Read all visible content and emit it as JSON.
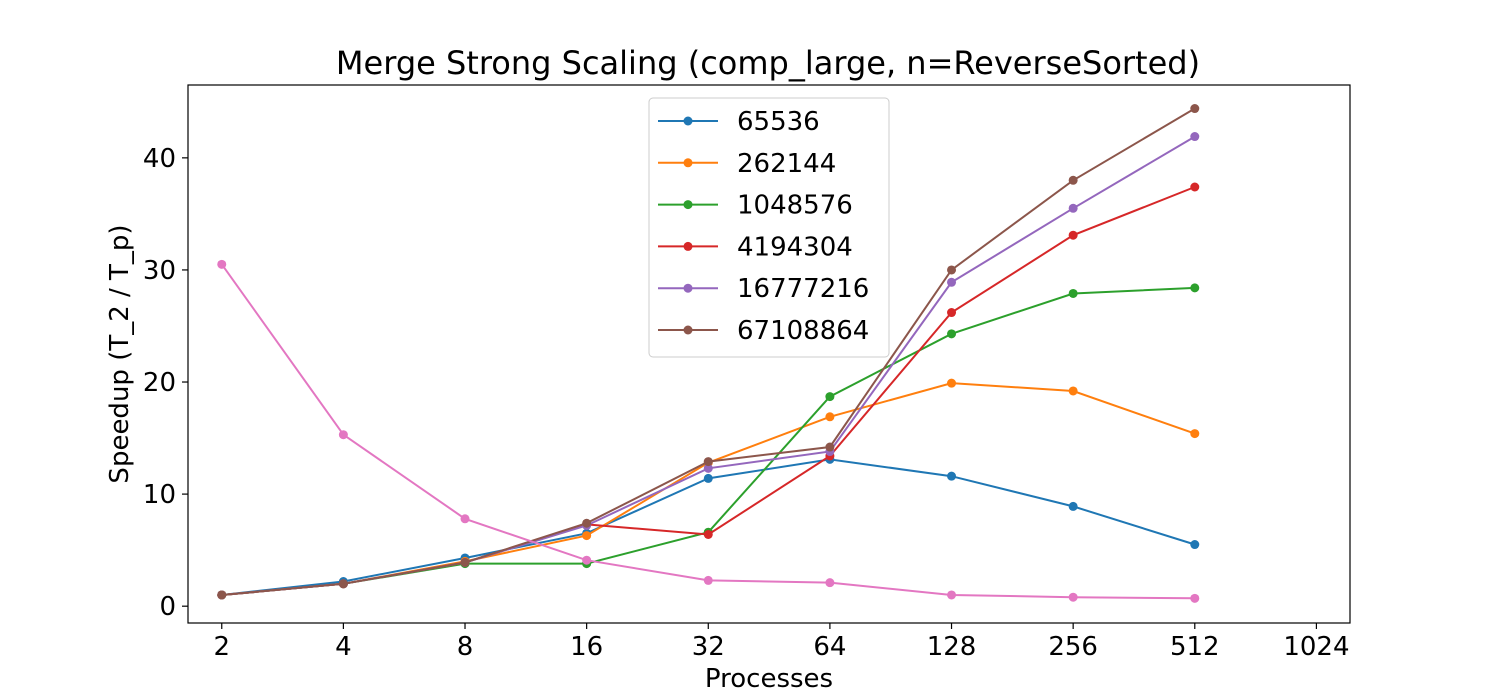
{
  "chart_data": {
    "type": "line",
    "title": "Merge Strong Scaling (comp_large, n=ReverseSorted)",
    "xlabel": "Processes",
    "ylabel": "Speedup (T_2 / T_p)",
    "x_scale": "log2",
    "x_ticks": [
      2,
      4,
      8,
      16,
      32,
      64,
      128,
      256,
      512,
      1024
    ],
    "y_ticks": [
      0,
      10,
      20,
      30,
      40
    ],
    "xlim": [
      1.65,
      1240
    ],
    "ylim": [
      -1.5,
      46.5
    ],
    "grid": false,
    "legend_position": "upper-center",
    "series": [
      {
        "name": "65536",
        "color": "#1f77b4",
        "x": [
          2,
          4,
          8,
          16,
          32,
          64,
          128,
          256,
          512
        ],
        "y": [
          1.0,
          2.2,
          4.3,
          6.5,
          11.4,
          13.1,
          11.6,
          8.9,
          5.5
        ]
      },
      {
        "name": "262144",
        "color": "#ff7f0e",
        "x": [
          2,
          4,
          8,
          16,
          32,
          64,
          128,
          256,
          512
        ],
        "y": [
          1.0,
          2.0,
          4.0,
          6.3,
          12.8,
          16.9,
          19.9,
          19.2,
          15.4
        ]
      },
      {
        "name": "1048576",
        "color": "#2ca02c",
        "x": [
          2,
          4,
          8,
          16,
          32,
          64,
          128,
          256,
          512
        ],
        "y": [
          1.0,
          2.0,
          3.8,
          3.8,
          6.6,
          18.7,
          24.3,
          27.9,
          28.4
        ]
      },
      {
        "name": "4194304",
        "color": "#d62728",
        "x": [
          2,
          4,
          8,
          16,
          32,
          64,
          128,
          256,
          512
        ],
        "y": [
          1.0,
          2.0,
          3.9,
          7.3,
          6.4,
          13.4,
          26.2,
          33.1,
          37.4
        ]
      },
      {
        "name": "16777216",
        "color": "#9467bd",
        "x": [
          2,
          4,
          8,
          16,
          32,
          64,
          128,
          256,
          512
        ],
        "y": [
          1.0,
          2.0,
          3.9,
          7.2,
          12.3,
          13.8,
          28.9,
          35.5,
          41.9
        ]
      },
      {
        "name": "67108864",
        "color": "#8c564b",
        "x": [
          2,
          4,
          8,
          16,
          32,
          64,
          128,
          256,
          512
        ],
        "y": [
          1.0,
          2.0,
          3.9,
          7.4,
          12.9,
          14.2,
          30.0,
          38.0,
          44.4
        ]
      },
      {
        "name": "",
        "color": "#e377c2",
        "in_legend": false,
        "x": [
          2,
          4,
          8,
          16,
          32,
          64,
          128,
          256,
          512
        ],
        "y": [
          30.5,
          15.3,
          7.8,
          4.1,
          2.3,
          2.1,
          1.0,
          0.8,
          0.7
        ]
      }
    ]
  }
}
